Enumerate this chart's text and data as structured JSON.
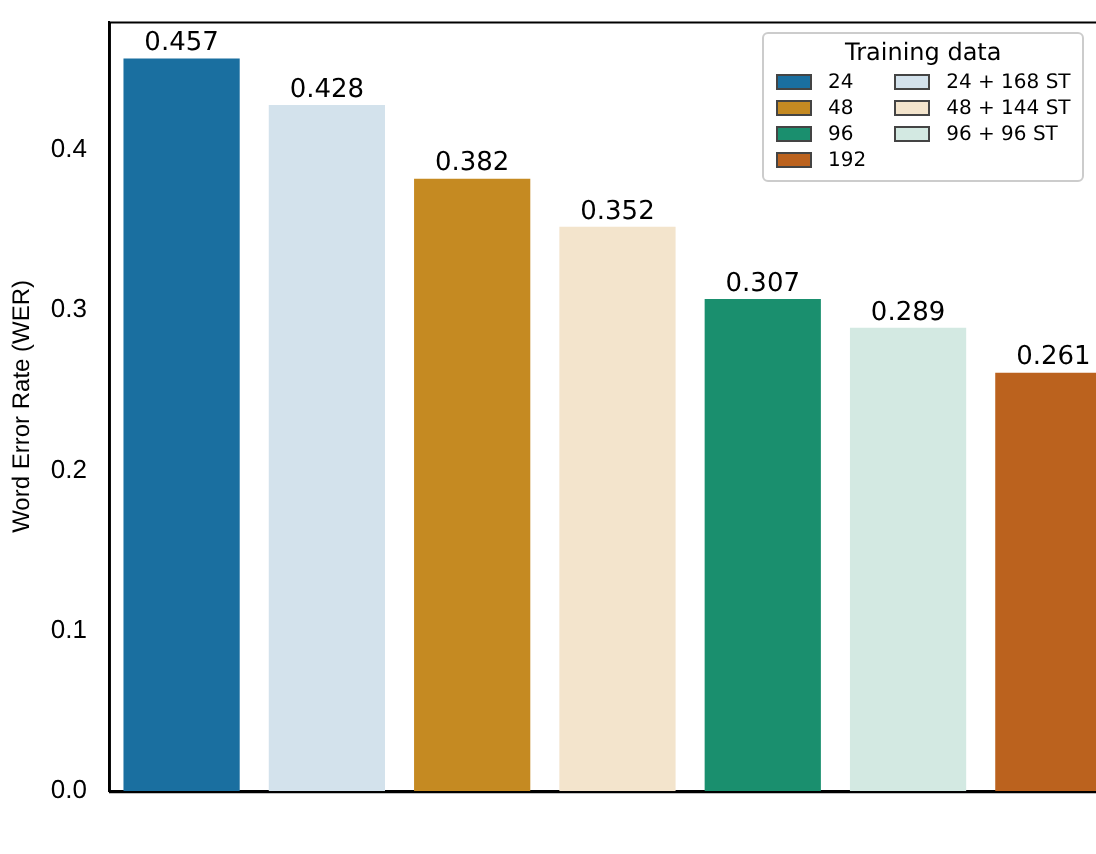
{
  "chart_data": {
    "type": "bar",
    "ylabel": "Word Error Rate (WER)",
    "legend_title": "Training data",
    "legend": "top right",
    "data_labels": true,
    "grid": false,
    "categories": [
      null,
      null,
      null,
      null,
      null,
      null,
      null
    ],
    "ylim": [
      0,
      0.48
    ],
    "yticks": [
      {
        "value": 0,
        "label": "0.0"
      },
      0.1,
      0.2,
      0.3,
      0.4
    ],
    "series": [
      {
        "name": "24",
        "color": "#1a6fa0",
        "values": [
          0.457,
          null,
          null,
          null,
          null,
          null,
          null
        ]
      },
      {
        "name": "48",
        "color": "#c58a22",
        "values": [
          null,
          null,
          0.382,
          null,
          null,
          null,
          null
        ]
      },
      {
        "name": "96",
        "color": "#1a8f6e",
        "values": [
          null,
          null,
          null,
          null,
          0.307,
          null,
          null
        ]
      },
      {
        "name": "192",
        "color": "#bb621e",
        "values": [
          null,
          null,
          null,
          null,
          null,
          null,
          0.261
        ]
      },
      {
        "name": "24 + 168 ST",
        "color": "#d3e2ec",
        "values": [
          null,
          0.428,
          null,
          null,
          null,
          null,
          null
        ]
      },
      {
        "name": "48 + 144 ST",
        "color": "#f3e4cc",
        "values": [
          null,
          null,
          null,
          0.352,
          null,
          null,
          null
        ]
      },
      {
        "name": "96 + 96 ST",
        "color": "#d3e9e2",
        "values": [
          null,
          null,
          null,
          null,
          null,
          0.289,
          null
        ]
      }
    ]
  }
}
